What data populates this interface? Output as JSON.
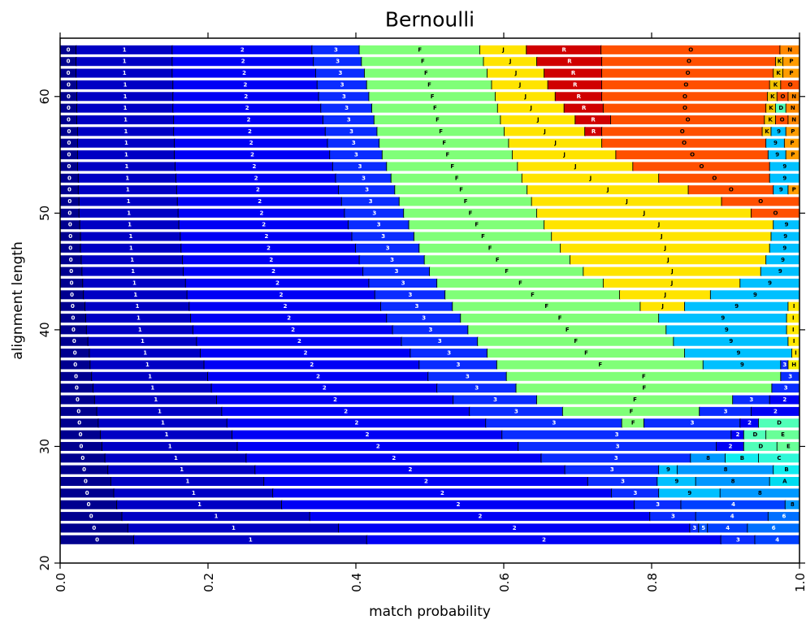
{
  "chart_data": {
    "type": "stacked-barh",
    "title": "Bernoulli",
    "xlabel": "match probability",
    "ylabel": "alignment length",
    "xlim": [
      0,
      1
    ],
    "ylim": [
      20,
      65
    ],
    "xticks": [
      {
        "value": 0,
        "label": "0.0"
      },
      0.2,
      0.4,
      0.6,
      0.8,
      {
        "value": 1,
        "label": "1.0"
      }
    ],
    "yticks": [
      20,
      30,
      40,
      50,
      60
    ],
    "colors": {
      "0": "#00008f",
      "1": "#0000c4",
      "2": "#0000f5",
      "3": "#0a2cff",
      "4": "#0040ff",
      "5": "#0050ff",
      "6": "#0070ff",
      "8": "#0098ff",
      "9": "#00c0ff",
      "A": "#00dcf0",
      "B": "#10ecf0",
      "C": "#30f8d8",
      "D": "#50ffb8",
      "E": "#68ff98",
      "F": "#80ff78",
      "H": "#f8f000",
      "I": "#ffe800",
      "J": "#ffe400",
      "K": "#f0c000",
      "P": "#ff9c00",
      "N": "#ff8800",
      "O": "#ff5000",
      "R": "#d00000"
    },
    "rows": [
      {
        "y": 22,
        "labels": [
          "0",
          "1",
          "2",
          "3",
          "4"
        ],
        "values": [
          0.1,
          0.315,
          0.479,
          0.046,
          0.06
        ]
      },
      {
        "y": 23,
        "labels": [
          "0",
          "1",
          "2",
          "3",
          "5",
          "4",
          "6"
        ],
        "values": [
          0.092,
          0.285,
          0.475,
          0.012,
          0.012,
          0.054,
          0.07
        ]
      },
      {
        "y": 24,
        "labels": [
          "0",
          "1",
          "2",
          "3",
          "4",
          "6"
        ],
        "values": [
          0.084,
          0.254,
          0.46,
          0.062,
          0.098,
          0.042
        ]
      },
      {
        "y": 25,
        "labels": [
          "0",
          "1",
          "2",
          "3",
          "4",
          "8"
        ],
        "values": [
          0.077,
          0.223,
          0.477,
          0.063,
          0.141,
          0.019
        ]
      },
      {
        "y": 26,
        "labels": [
          "0",
          "1",
          "2",
          "3",
          "9",
          "8"
        ],
        "values": [
          0.073,
          0.215,
          0.458,
          0.064,
          0.083,
          0.107
        ]
      },
      {
        "y": 27,
        "labels": [
          "0",
          "1",
          "2",
          "3",
          "9",
          "8",
          "A"
        ],
        "values": [
          0.069,
          0.207,
          0.438,
          0.094,
          0.052,
          0.1,
          0.04
        ]
      },
      {
        "y": 28,
        "labels": [
          "0",
          "1",
          "2",
          "3",
          "9",
          "8",
          "B"
        ],
        "values": [
          0.065,
          0.199,
          0.419,
          0.127,
          0.025,
          0.13,
          0.035
        ]
      },
      {
        "y": 29,
        "labels": [
          "0",
          "1",
          "2",
          "3",
          "8",
          "B",
          "C"
        ],
        "values": [
          0.061,
          0.191,
          0.399,
          0.202,
          0.047,
          0.045,
          0.055
        ]
      },
      {
        "y": 30,
        "labels": [
          "0",
          "1",
          "2",
          "3",
          "2",
          "D",
          "E"
        ],
        "values": [
          0.057,
          0.183,
          0.38,
          0.268,
          0.037,
          0.045,
          0.03
        ]
      },
      {
        "y": 31,
        "labels": [
          "0",
          "1",
          "2",
          "3",
          "2",
          "D",
          "E"
        ],
        "values": [
          0.055,
          0.178,
          0.365,
          0.31,
          0.017,
          0.03,
          0.045
        ]
      },
      {
        "y": 32,
        "labels": [
          "0",
          "1",
          "2",
          "3",
          "F",
          "3",
          "2",
          "D"
        ],
        "values": [
          0.052,
          0.174,
          0.35,
          0.184,
          0.03,
          0.13,
          0.025,
          0.055
        ]
      },
      {
        "y": 33,
        "labels": [
          "0",
          "1",
          "2",
          "3",
          "F",
          "3",
          "2"
        ],
        "values": [
          0.05,
          0.169,
          0.335,
          0.126,
          0.185,
          0.07,
          0.065
        ]
      },
      {
        "y": 34,
        "labels": [
          "0",
          "1",
          "2",
          "3",
          "F",
          "3",
          "2"
        ],
        "values": [
          0.047,
          0.165,
          0.32,
          0.113,
          0.265,
          0.05,
          0.04
        ]
      },
      {
        "y": 35,
        "labels": [
          "0",
          "1",
          "2",
          "3",
          "F",
          "3"
        ],
        "values": [
          0.045,
          0.16,
          0.305,
          0.107,
          0.346,
          0.037
        ]
      },
      {
        "y": 36,
        "labels": [
          "0",
          "1",
          "2",
          "3",
          "F",
          "3"
        ],
        "values": [
          0.043,
          0.157,
          0.298,
          0.106,
          0.371,
          0.025
        ]
      },
      {
        "y": 37,
        "labels": [
          "0",
          "1",
          "2",
          "3",
          "F",
          "9",
          "3",
          "H"
        ],
        "values": [
          0.041,
          0.154,
          0.291,
          0.105,
          0.279,
          0.105,
          0.01,
          0.015
        ]
      },
      {
        "y": 38,
        "labels": [
          "0",
          "1",
          "2",
          "3",
          "F",
          "9",
          "I"
        ],
        "values": [
          0.04,
          0.15,
          0.284,
          0.104,
          0.267,
          0.145,
          0.01
        ]
      },
      {
        "y": 39,
        "labels": [
          "0",
          "1",
          "2",
          "3",
          "F",
          "9",
          "I"
        ],
        "values": [
          0.038,
          0.147,
          0.277,
          0.103,
          0.265,
          0.155,
          0.015
        ]
      },
      {
        "y": 40,
        "labels": [
          "0",
          "1",
          "2",
          "3",
          "F",
          "9",
          "I"
        ],
        "values": [
          0.036,
          0.144,
          0.27,
          0.102,
          0.268,
          0.163,
          0.017
        ]
      },
      {
        "y": 41,
        "labels": [
          "0",
          "1",
          "2",
          "3",
          "F",
          "9",
          "I"
        ],
        "values": [
          0.035,
          0.142,
          0.265,
          0.1,
          0.268,
          0.173,
          0.017
        ]
      },
      {
        "y": 42,
        "labels": [
          "0",
          "1",
          "2",
          "3",
          "F",
          "J",
          "9",
          "I"
        ],
        "values": [
          0.034,
          0.141,
          0.259,
          0.097,
          0.254,
          0.06,
          0.14,
          0.015
        ]
      },
      {
        "y": 43,
        "labels": [
          "0",
          "1",
          "2",
          "3",
          "F",
          "J",
          "9"
        ],
        "values": [
          0.032,
          0.14,
          0.254,
          0.095,
          0.236,
          0.123,
          0.12
        ]
      },
      {
        "y": 44,
        "labels": [
          "0",
          "1",
          "2",
          "3",
          "F",
          "J",
          "9"
        ],
        "values": [
          0.031,
          0.139,
          0.248,
          0.092,
          0.225,
          0.185,
          0.08
        ]
      },
      {
        "y": 45,
        "labels": [
          "0",
          "1",
          "2",
          "3",
          "F",
          "J",
          "9"
        ],
        "values": [
          0.03,
          0.137,
          0.243,
          0.09,
          0.208,
          0.24,
          0.052
        ]
      },
      {
        "y": 46,
        "labels": [
          "0",
          "1",
          "2",
          "3",
          "F",
          "J",
          "9"
        ],
        "values": [
          0.029,
          0.137,
          0.239,
          0.088,
          0.197,
          0.265,
          0.045
        ]
      },
      {
        "y": 47,
        "labels": [
          "0",
          "1",
          "2",
          "3",
          "F",
          "J",
          "9"
        ],
        "values": [
          0.028,
          0.136,
          0.236,
          0.086,
          0.191,
          0.283,
          0.04
        ]
      },
      {
        "y": 48,
        "labels": [
          "0",
          "1",
          "2",
          "3",
          "F",
          "J",
          "9"
        ],
        "values": [
          0.028,
          0.135,
          0.232,
          0.084,
          0.186,
          0.297,
          0.038
        ]
      },
      {
        "y": 49,
        "labels": [
          "0",
          "1",
          "2",
          "3",
          "F",
          "J",
          "9"
        ],
        "values": [
          0.027,
          0.134,
          0.229,
          0.082,
          0.183,
          0.31,
          0.035
        ]
      },
      {
        "y": 50,
        "labels": [
          "0",
          "1",
          "2",
          "3",
          "F",
          "J",
          "O"
        ],
        "values": [
          0.026,
          0.134,
          0.225,
          0.08,
          0.18,
          0.29,
          0.065
        ]
      },
      {
        "y": 51,
        "labels": [
          "0",
          "1",
          "2",
          "3",
          "F",
          "J",
          "O"
        ],
        "values": [
          0.026,
          0.133,
          0.222,
          0.078,
          0.179,
          0.257,
          0.105
        ]
      },
      {
        "y": 52,
        "labels": [
          "0",
          "1",
          "2",
          "3",
          "F",
          "J",
          "O",
          "9",
          "P"
        ],
        "values": [
          0.025,
          0.133,
          0.219,
          0.076,
          0.179,
          0.218,
          0.115,
          0.02,
          0.015
        ]
      },
      {
        "y": 53,
        "labels": [
          "0",
          "1",
          "2",
          "3",
          "F",
          "J",
          "O",
          "9"
        ],
        "values": [
          0.025,
          0.132,
          0.216,
          0.075,
          0.177,
          0.185,
          0.15,
          0.04
        ]
      },
      {
        "y": 54,
        "labels": [
          "0",
          "1",
          "2",
          "3",
          "F",
          "J",
          "O",
          "9"
        ],
        "values": [
          0.024,
          0.132,
          0.213,
          0.073,
          0.177,
          0.156,
          0.185,
          0.04
        ]
      },
      {
        "y": 55,
        "labels": [
          "0",
          "1",
          "2",
          "3",
          "F",
          "J",
          "O",
          "9",
          "P"
        ],
        "values": [
          0.024,
          0.131,
          0.21,
          0.071,
          0.176,
          0.14,
          0.206,
          0.024,
          0.018
        ]
      },
      {
        "y": 56,
        "labels": [
          "0",
          "1",
          "2",
          "3",
          "F",
          "J",
          "O",
          "9",
          "P"
        ],
        "values": [
          0.024,
          0.131,
          0.207,
          0.07,
          0.175,
          0.126,
          0.222,
          0.025,
          0.02
        ]
      },
      {
        "y": 57,
        "labels": [
          "0",
          "1",
          "2",
          "3",
          "F",
          "J",
          "R",
          "O",
          "K",
          "9",
          "P"
        ],
        "values": [
          0.024,
          0.13,
          0.205,
          0.07,
          0.172,
          0.109,
          0.023,
          0.217,
          0.012,
          0.02,
          0.018
        ]
      },
      {
        "y": 58,
        "labels": [
          "0",
          "1",
          "2",
          "3",
          "F",
          "J",
          "R",
          "O",
          "K",
          "O",
          "N"
        ],
        "values": [
          0.023,
          0.131,
          0.202,
          0.069,
          0.171,
          0.101,
          0.048,
          0.208,
          0.015,
          0.017,
          0.015
        ]
      },
      {
        "y": 59,
        "labels": [
          "0",
          "1",
          "2",
          "3",
          "F",
          "J",
          "R",
          "O",
          "K",
          "D",
          "N"
        ],
        "values": [
          0.023,
          0.13,
          0.2,
          0.069,
          0.17,
          0.09,
          0.053,
          0.22,
          0.013,
          0.014,
          0.018
        ]
      },
      {
        "y": 60,
        "labels": [
          "0",
          "1",
          "2",
          "3",
          "F",
          "J",
          "R",
          "O",
          "K",
          "O",
          "N"
        ],
        "values": [
          0.023,
          0.13,
          0.197,
          0.068,
          0.171,
          0.081,
          0.063,
          0.224,
          0.013,
          0.015,
          0.015
        ]
      },
      {
        "y": 61,
        "labels": [
          "0",
          "1",
          "2",
          "3",
          "F",
          "J",
          "R",
          "O",
          "K",
          "O"
        ],
        "values": [
          0.023,
          0.13,
          0.195,
          0.067,
          0.169,
          0.076,
          0.073,
          0.227,
          0.015,
          0.025
        ]
      },
      {
        "y": 62,
        "labels": [
          "0",
          "1",
          "2",
          "3",
          "F",
          "J",
          "R",
          "O",
          "K",
          "P"
        ],
        "values": [
          0.022,
          0.13,
          0.194,
          0.066,
          0.166,
          0.077,
          0.078,
          0.232,
          0.013,
          0.022
        ]
      },
      {
        "y": 63,
        "labels": [
          "0",
          "1",
          "2",
          "3",
          "F",
          "J",
          "R",
          "O",
          "K",
          "P"
        ],
        "values": [
          0.022,
          0.13,
          0.191,
          0.065,
          0.165,
          0.072,
          0.088,
          0.235,
          0.01,
          0.022
        ]
      },
      {
        "y": 64,
        "labels": [
          "0",
          "1",
          "2",
          "3",
          "F",
          "J",
          "R",
          "O",
          "N"
        ],
        "values": [
          0.022,
          0.13,
          0.189,
          0.064,
          0.163,
          0.063,
          0.101,
          0.242,
          0.026
        ]
      }
    ]
  }
}
